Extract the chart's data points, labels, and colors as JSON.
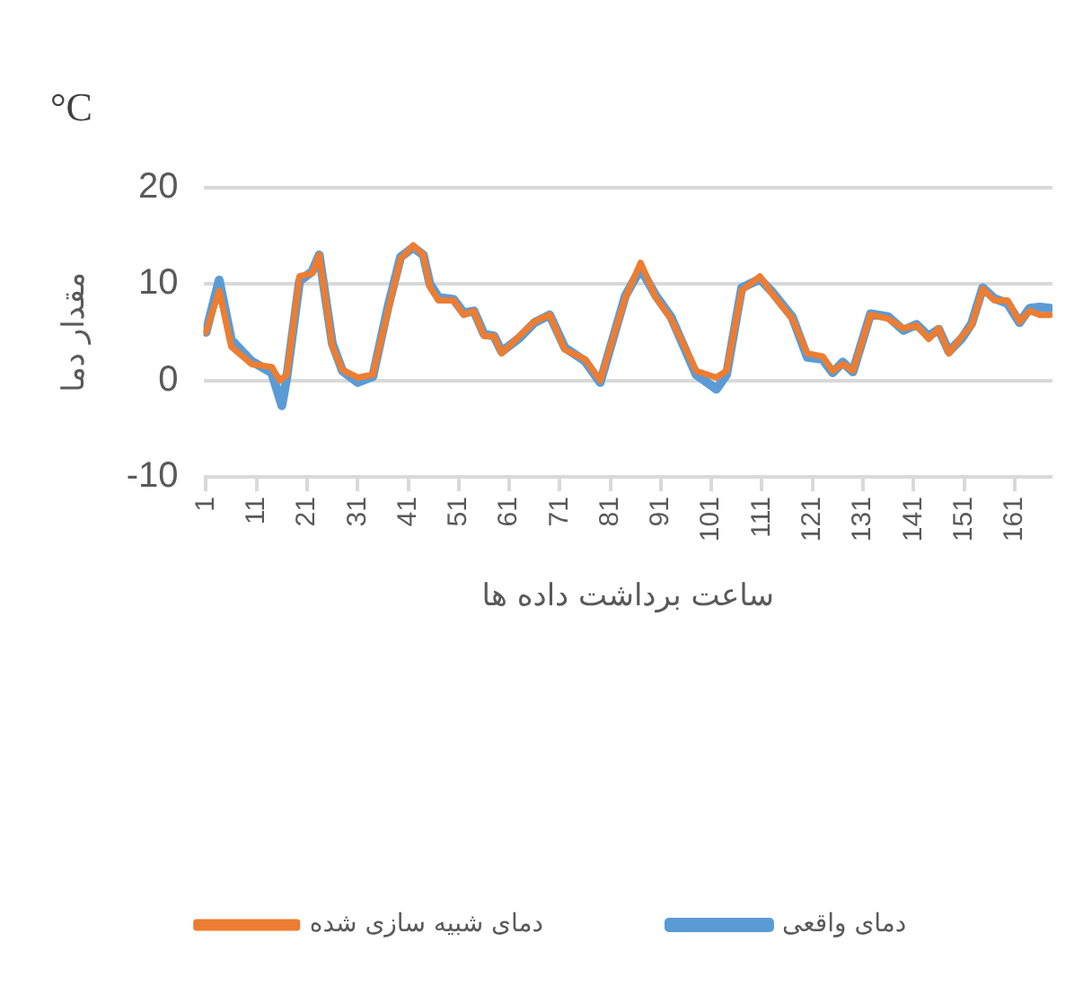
{
  "chart_data": {
    "type": "line",
    "title": "°C",
    "xlabel": "ساعت برداشت داده ها",
    "ylabel": "مقدار دما",
    "xlim": [
      0.5,
      168.5
    ],
    "xticks": [
      1,
      11,
      21,
      31,
      41,
      51,
      61,
      71,
      81,
      91,
      101,
      111,
      121,
      131,
      141,
      151,
      161
    ],
    "ylim": [
      -10,
      20
    ],
    "yticks": [
      -10,
      0,
      10,
      20
    ],
    "grid": "y",
    "legend": "bottom",
    "marker": "none",
    "line_style": "solid",
    "series": [
      {
        "name": "دمای واقعی",
        "color": "#5b9bd5",
        "x": [
          1,
          3.6,
          6,
          10,
          14,
          16,
          17,
          19.5,
          22,
          23.4,
          26,
          28,
          31,
          34,
          37,
          39.5,
          42,
          44,
          45.3,
          47,
          50,
          52,
          54,
          56,
          58,
          59.5,
          63,
          66,
          69,
          72,
          76,
          79,
          84,
          87,
          90,
          93,
          96,
          98,
          102,
          104,
          107,
          110.6,
          113,
          117,
          120,
          123,
          125,
          127,
          129,
          132.5,
          136,
          139,
          141.6,
          144,
          146,
          148,
          150.6,
          152.5,
          154.7,
          157,
          159.6,
          162,
          164,
          166,
          168
        ],
        "values": [
          5.0,
          10.4,
          4.2,
          2.0,
          0.8,
          -2.6,
          0.4,
          10.3,
          11.3,
          13.0,
          3.8,
          1.0,
          -0.2,
          0.4,
          7.6,
          12.8,
          13.8,
          13.0,
          10.0,
          8.6,
          8.4,
          7.0,
          7.2,
          4.8,
          4.6,
          3.0,
          4.4,
          6.0,
          6.8,
          3.4,
          2.0,
          -0.2,
          8.8,
          11.6,
          8.8,
          6.6,
          3.0,
          0.6,
          -0.9,
          0.6,
          9.6,
          10.5,
          9.2,
          6.6,
          2.4,
          2.2,
          0.8,
          1.9,
          0.9,
          6.9,
          6.6,
          5.2,
          5.8,
          4.6,
          5.3,
          3.0,
          4.4,
          5.9,
          9.6,
          8.5,
          8.0,
          6.0,
          7.5,
          7.6,
          7.5
        ]
      },
      {
        "name": "دمای شبیه سازی شده",
        "color": "#ed7d31",
        "x": [
          1,
          3.6,
          6,
          10,
          14,
          15.6,
          17,
          19.5,
          22,
          23.4,
          26,
          28,
          31,
          34,
          37,
          39.5,
          42,
          44,
          45.3,
          47,
          50,
          52,
          54,
          56,
          58,
          59.5,
          63,
          66,
          69,
          72,
          76,
          79,
          84,
          87,
          90,
          93,
          96,
          98,
          102,
          104,
          107,
          110.6,
          113,
          117,
          120,
          123,
          125,
          127,
          129,
          132.5,
          136,
          139,
          141.6,
          144,
          146,
          148,
          150.6,
          152.5,
          154.7,
          157,
          159.6,
          162,
          164,
          166,
          168
        ],
        "values": [
          5.0,
          9.3,
          3.5,
          1.7,
          1.4,
          0.0,
          0.6,
          10.8,
          11.1,
          13.0,
          3.5,
          1.1,
          0.3,
          0.6,
          7.2,
          12.6,
          14.0,
          13.0,
          9.7,
          8.3,
          8.3,
          6.8,
          7.2,
          4.6,
          4.6,
          2.8,
          4.6,
          6.1,
          6.8,
          3.2,
          2.2,
          0.0,
          8.6,
          12.2,
          8.6,
          6.4,
          3.2,
          1.0,
          0.3,
          1.0,
          9.3,
          10.8,
          9.0,
          6.4,
          2.8,
          2.5,
          1.0,
          1.7,
          1.0,
          6.8,
          6.4,
          5.4,
          5.7,
          4.3,
          5.4,
          2.8,
          4.6,
          5.7,
          9.5,
          8.3,
          8.3,
          6.1,
          7.2,
          6.8,
          6.8
        ]
      }
    ]
  }
}
